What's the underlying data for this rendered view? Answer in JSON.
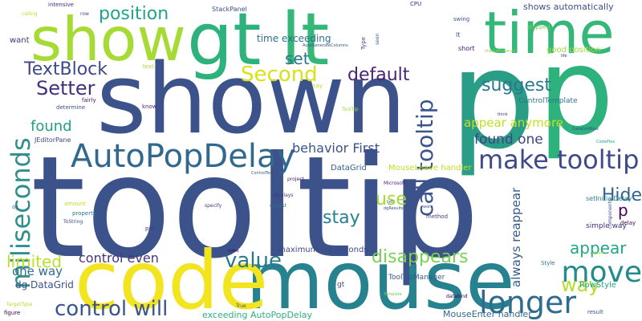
{
  "background": "#ffffff",
  "words": [
    {
      "text": "tooltip",
      "color": "#3b528b",
      "vertical": false
    },
    {
      "text": "p",
      "color": "#2a9d87",
      "vertical": false
    },
    {
      "text": "shown",
      "color": "#3b528b",
      "vertical": false
    },
    {
      "text": "mouse",
      "color": "#26828e",
      "vertical": false
    },
    {
      "text": "code",
      "color": "#f2e41f",
      "vertical": false
    },
    {
      "text": "gt",
      "color": "#2db27d",
      "vertical": false
    },
    {
      "text": "lt",
      "color": "#35b779",
      "vertical": false
    },
    {
      "text": "show",
      "color": "#a6db35",
      "vertical": false
    },
    {
      "text": "time",
      "color": "#35b779",
      "vertical": false
    },
    {
      "text": "p",
      "color": "#2db27d",
      "vertical": false
    },
    {
      "text": "AutoPopDelay",
      "color": "#31688e",
      "vertical": false
    },
    {
      "text": "miliseconds",
      "color": "#2e8f8c",
      "vertical": true
    },
    {
      "text": "call tooltip",
      "color": "#39558c",
      "vertical": true
    },
    {
      "text": "make tooltip",
      "color": "#3e4a89",
      "vertical": false
    },
    {
      "text": "move",
      "color": "#238a8d",
      "vertical": false
    },
    {
      "text": "longer",
      "color": "#2f6b8e",
      "vertical": false
    },
    {
      "text": "value",
      "color": "#2a788e",
      "vertical": false
    },
    {
      "text": "control will",
      "color": "#39558c",
      "vertical": false
    },
    {
      "text": "Second",
      "color": "#d8e219",
      "vertical": false
    },
    {
      "text": "TextBlock",
      "color": "#3f4889",
      "vertical": false
    },
    {
      "text": "Setter",
      "color": "#46307e",
      "vertical": false
    },
    {
      "text": "position",
      "color": "#20a386",
      "vertical": false
    },
    {
      "text": "set",
      "color": "#2c738e",
      "vertical": false
    },
    {
      "text": "default",
      "color": "#482475",
      "vertical": false
    },
    {
      "text": "suggest",
      "color": "#2a788e",
      "vertical": false
    },
    {
      "text": "found",
      "color": "#1fa088",
      "vertical": false
    },
    {
      "text": "use",
      "color": "#a0da39",
      "vertical": false
    },
    {
      "text": "stay",
      "color": "#26818e",
      "vertical": false
    },
    {
      "text": "disappears",
      "color": "#7ad151",
      "vertical": false
    },
    {
      "text": "appear",
      "color": "#22a785",
      "vertical": false
    },
    {
      "text": "way",
      "color": "#b5de2b",
      "vertical": false
    },
    {
      "text": "Hide",
      "color": "#32648e",
      "vertical": false
    },
    {
      "text": "p",
      "color": "#440154",
      "vertical": false
    },
    {
      "text": "appear anymore",
      "color": "#c2df23",
      "vertical": false
    },
    {
      "text": "found one",
      "color": "#414487",
      "vertical": false
    },
    {
      "text": "behavior First",
      "color": "#3a538b",
      "vertical": false
    },
    {
      "text": "control even",
      "color": "#453581",
      "vertical": false
    },
    {
      "text": "limited",
      "color": "#bddf26",
      "vertical": false
    },
    {
      "text": "one way",
      "color": "#2f6c8e",
      "vertical": false
    },
    {
      "text": "always reappear",
      "color": "#365c8d",
      "vertical": true
    },
    {
      "text": "shows automatically",
      "color": "#3b528b",
      "vertical": false
    },
    {
      "text": "time exceeding",
      "color": "#2d708e",
      "vertical": false
    },
    {
      "text": "maximum miliseconds",
      "color": "#3e4989",
      "vertical": false
    },
    {
      "text": "exceeding AutoPopDelay",
      "color": "#2cb17e",
      "vertical": false
    },
    {
      "text": "MouseLeave handler",
      "color": "#bddf26",
      "vertical": false
    },
    {
      "text": "MouseEnter handler",
      "color": "#31678e",
      "vertical": false
    },
    {
      "text": "dg DataGrid",
      "color": "#3b528b",
      "vertical": false
    },
    {
      "text": "DataGrid",
      "color": "#33628d",
      "vertical": false
    },
    {
      "text": "ControlTemplate",
      "color": "#2a768e",
      "vertical": false
    },
    {
      "text": "ToolTipManager",
      "color": "#38588c",
      "vertical": false
    },
    {
      "text": "StackPanel",
      "color": "#3e4c8a",
      "vertical": false
    },
    {
      "text": "RowStyle",
      "color": "#20a486",
      "vertical": false
    },
    {
      "text": "setInitialDelay",
      "color": "#277f8e",
      "vertical": false
    },
    {
      "text": "simple way",
      "color": "#46307e",
      "vertical": false
    },
    {
      "text": "good position",
      "color": "#a0da39",
      "vertical": false
    },
    {
      "text": "JEditorPane",
      "color": "#3f4788",
      "vertical": false
    },
    {
      "text": "want",
      "color": "#46327e",
      "vertical": false
    },
    {
      "text": "intensive",
      "color": "#472c7a",
      "vertical": false
    },
    {
      "text": "determine",
      "color": "#3b528b",
      "vertical": false
    },
    {
      "text": "fairly",
      "color": "#48186a",
      "vertical": false
    },
    {
      "text": "know",
      "color": "#481f70",
      "vertical": false
    },
    {
      "text": "stopped",
      "color": "#7fd34e",
      "vertical": false
    },
    {
      "text": "swing",
      "color": "#3b528b",
      "vertical": false
    },
    {
      "text": "short",
      "color": "#481467",
      "vertical": false
    },
    {
      "text": "CPU",
      "color": "#482878",
      "vertical": false
    },
    {
      "text": "say",
      "color": "#b8de29",
      "vertical": false
    },
    {
      "text": "lt",
      "color": "#3d4e8a",
      "vertical": false
    },
    {
      "text": "Type",
      "color": "#3e4a89",
      "vertical": true
    },
    {
      "text": "seen",
      "color": "#32648e",
      "vertical": true
    },
    {
      "text": "delay",
      "color": "#440154",
      "vertical": false
    },
    {
      "text": "text",
      "color": "#a0da39",
      "vertical": false
    },
    {
      "text": "row",
      "color": "#3f4788",
      "vertical": false
    },
    {
      "text": "amount",
      "color": "#bddf26",
      "vertical": false
    },
    {
      "text": "property",
      "color": "#2a778e",
      "vertical": false
    },
    {
      "text": "method",
      "color": "#433e85",
      "vertical": false
    },
    {
      "text": "Microsoft",
      "color": "#482475",
      "vertical": false
    },
    {
      "text": "databind",
      "color": "#440154",
      "vertical": false
    },
    {
      "text": "figure",
      "color": "#440154",
      "vertical": false
    },
    {
      "text": "result",
      "color": "#3b528b",
      "vertical": false
    },
    {
      "text": "Style",
      "color": "#2c728e",
      "vertical": false
    },
    {
      "text": "pre",
      "color": "#443983",
      "vertical": false
    },
    {
      "text": "components",
      "color": "#3b528b",
      "vertical": true
    },
    {
      "text": "ToString",
      "color": "#3e4c8a",
      "vertical": false
    },
    {
      "text": "specify",
      "color": "#453882",
      "vertical": false
    },
    {
      "text": "closest",
      "color": "#2d708e",
      "vertical": false
    },
    {
      "text": "displays",
      "color": "#46337f",
      "vertical": false
    },
    {
      "text": "project",
      "color": "#481b6d",
      "vertical": false
    },
    {
      "text": "ControlTemplate",
      "color": "#3b528b",
      "vertical": false
    },
    {
      "text": "dgResults",
      "color": "#3e4989",
      "vertical": false
    },
    {
      "text": "txtl",
      "color": "#3e4a89",
      "vertical": false
    },
    {
      "text": "AutoGenerateColumns",
      "color": "#3b528b",
      "vertical": false
    },
    {
      "text": "sharedInstance",
      "color": "#90d743",
      "vertical": false
    },
    {
      "text": "life",
      "color": "#482878",
      "vertical": false
    },
    {
      "text": "think",
      "color": "#46337f",
      "vertical": false
    },
    {
      "text": "DataGridRow",
      "color": "#3b528b",
      "vertical": false
    },
    {
      "text": "CodePlex",
      "color": "#22a884",
      "vertical": false
    },
    {
      "text": "custom",
      "color": "#90d743",
      "vertical": false
    },
    {
      "text": "work",
      "color": "#3e4989",
      "vertical": false
    },
    {
      "text": "TargetType",
      "color": "#b5de2b",
      "vertical": false
    },
    {
      "text": "Template",
      "color": "#6ccd5a",
      "vertical": false
    },
    {
      "text": "True",
      "color": "#3b528b",
      "vertical": false
    },
    {
      "text": "wpf",
      "color": "#3b528b",
      "vertical": false
    },
    {
      "text": "come",
      "color": "#440154",
      "vertical": false
    },
    {
      "text": "dg",
      "color": "#3b528b",
      "vertical": false
    },
    {
      "text": "gt",
      "color": "#3e4989",
      "vertical": false
    },
    {
      "text": "ToolTip",
      "color": "#a0da39",
      "vertical": false
    },
    {
      "text": "calling",
      "color": "#b8de29",
      "vertical": false
    }
  ]
}
